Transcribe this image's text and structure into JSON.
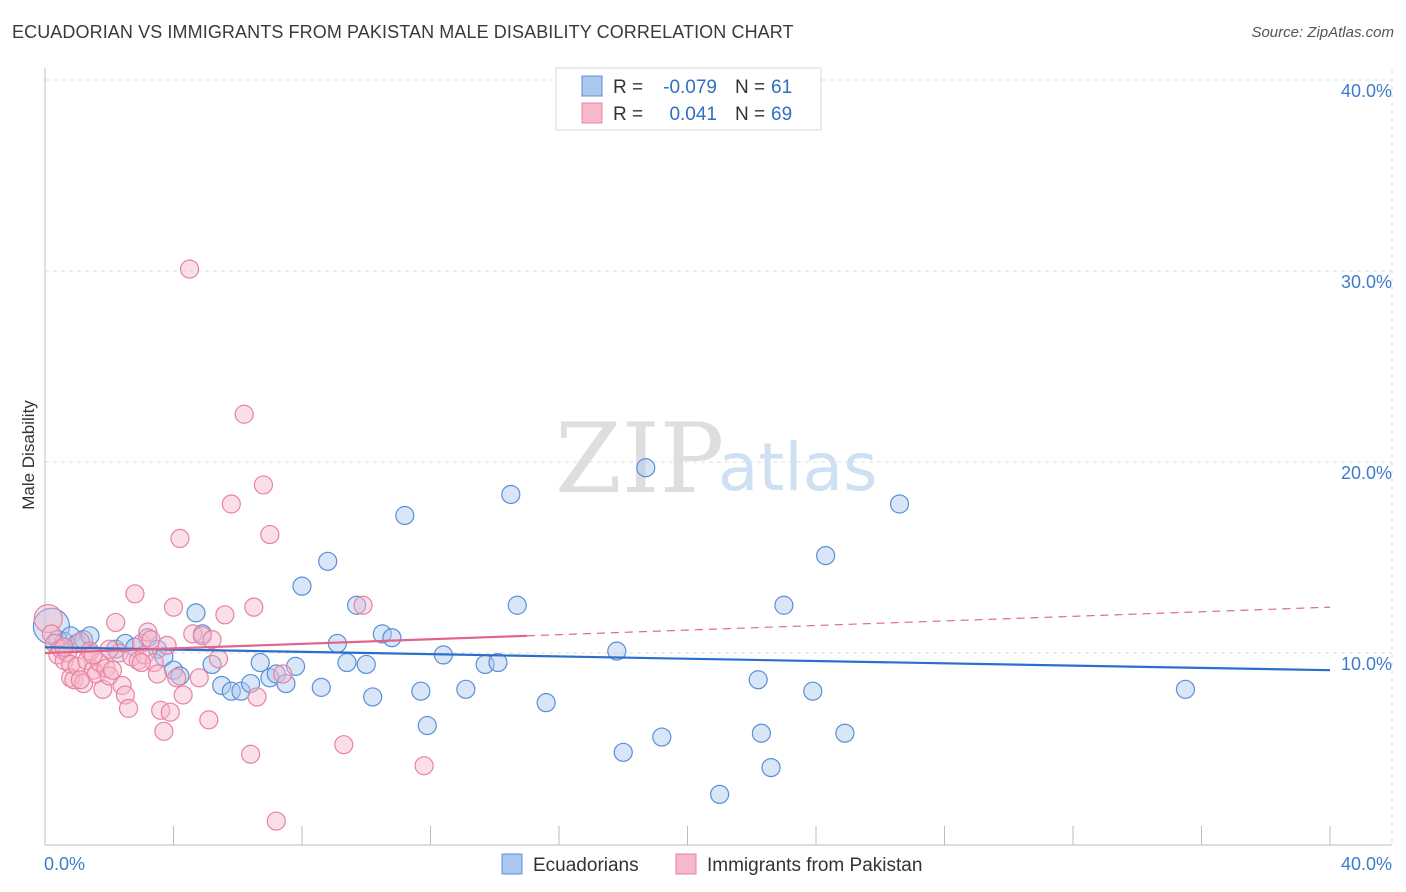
{
  "title": "ECUADORIAN VS IMMIGRANTS FROM PAKISTAN MALE DISABILITY CORRELATION CHART",
  "source": "Source: ZipAtlas.com",
  "watermark": {
    "part1": "ZIP",
    "part2": "atlas"
  },
  "chart_data": {
    "type": "scatter",
    "title": "ECUADORIAN VS IMMIGRANTS FROM PAKISTAN MALE DISABILITY CORRELATION CHART",
    "ylabel": "Male Disability",
    "xlabel": "",
    "xlim": [
      0,
      40
    ],
    "ylim": [
      0,
      40
    ],
    "x_tick_labels": {
      "min": "0.0%",
      "max": "40.0%"
    },
    "y_tick_labels": [
      {
        "value": 10,
        "label": "10.0%"
      },
      {
        "value": 20,
        "label": "20.0%"
      },
      {
        "value": 30,
        "label": "30.0%"
      },
      {
        "value": 40,
        "label": "40.0%"
      }
    ],
    "grid": true,
    "legend": {
      "placement": "top-center",
      "r_label": "R =",
      "n_label": "N =",
      "entries": [
        {
          "series": "Ecuadorians",
          "r": "-0.079",
          "n": "61"
        },
        {
          "series": "Immigrants from Pakistan",
          "r": "0.041",
          "n": "69"
        }
      ]
    },
    "colors": {
      "Ecuadorians": {
        "fill": "#a9c8ef",
        "stroke": "#5a8fd6",
        "line": "#2b6fcc"
      },
      "Immigrants from Pakistan": {
        "fill": "#f6b9cb",
        "stroke": "#e8839f",
        "line": "#e0648e"
      }
    },
    "series": [
      {
        "name": "Ecuadorians",
        "trend": {
          "x_start": 0,
          "y_start": 10.3,
          "x_end": 40,
          "y_end": 9.1,
          "dashed_from": null
        },
        "points": [
          [
            0.2,
            11.4
          ],
          [
            0.4,
            10.7
          ],
          [
            0.6,
            10.6
          ],
          [
            0.8,
            10.9
          ],
          [
            1.0,
            10.5
          ],
          [
            1.2,
            10.7
          ],
          [
            1.4,
            10.9
          ],
          [
            2.2,
            10.2
          ],
          [
            2.5,
            10.5
          ],
          [
            2.8,
            10.3
          ],
          [
            3.2,
            10.8
          ],
          [
            3.5,
            10.2
          ],
          [
            3.7,
            9.8
          ],
          [
            4.0,
            9.1
          ],
          [
            4.2,
            8.8
          ],
          [
            4.7,
            12.1
          ],
          [
            4.9,
            11.0
          ],
          [
            5.2,
            9.4
          ],
          [
            5.5,
            8.3
          ],
          [
            5.8,
            8.0
          ],
          [
            6.1,
            8.0
          ],
          [
            6.4,
            8.4
          ],
          [
            6.7,
            9.5
          ],
          [
            7.0,
            8.7
          ],
          [
            7.2,
            8.9
          ],
          [
            7.5,
            8.4
          ],
          [
            7.8,
            9.3
          ],
          [
            8.0,
            13.5
          ],
          [
            8.6,
            8.2
          ],
          [
            8.8,
            14.8
          ],
          [
            9.1,
            10.5
          ],
          [
            9.4,
            9.5
          ],
          [
            9.7,
            12.5
          ],
          [
            10.0,
            9.4
          ],
          [
            10.2,
            7.7
          ],
          [
            10.5,
            11.0
          ],
          [
            10.8,
            10.8
          ],
          [
            11.2,
            17.2
          ],
          [
            11.7,
            8.0
          ],
          [
            11.9,
            6.2
          ],
          [
            12.4,
            9.9
          ],
          [
            13.1,
            8.1
          ],
          [
            13.7,
            9.4
          ],
          [
            14.1,
            9.5
          ],
          [
            14.5,
            18.3
          ],
          [
            14.7,
            12.5
          ],
          [
            15.6,
            7.4
          ],
          [
            17.8,
            10.1
          ],
          [
            18.0,
            4.8
          ],
          [
            18.7,
            19.7
          ],
          [
            19.2,
            5.6
          ],
          [
            22.2,
            8.6
          ],
          [
            22.3,
            5.8
          ],
          [
            22.6,
            4.0
          ],
          [
            23.0,
            12.5
          ],
          [
            23.9,
            8.0
          ],
          [
            24.3,
            15.1
          ],
          [
            24.9,
            5.8
          ],
          [
            26.6,
            17.8
          ],
          [
            35.5,
            8.1
          ],
          [
            21.0,
            2.6
          ]
        ]
      },
      {
        "name": "Immigrants from Pakistan",
        "trend": {
          "x_start": 0,
          "y_start": 10.0,
          "x_end": 40,
          "y_end": 12.4,
          "dashed_from": 15
        },
        "points": [
          [
            0.1,
            11.8
          ],
          [
            0.2,
            11.0
          ],
          [
            0.3,
            10.5
          ],
          [
            0.4,
            9.9
          ],
          [
            0.5,
            10.2
          ],
          [
            0.6,
            9.6
          ],
          [
            0.7,
            10.0
          ],
          [
            0.8,
            9.4
          ],
          [
            0.8,
            8.7
          ],
          [
            0.9,
            8.6
          ],
          [
            1.0,
            9.3
          ],
          [
            1.1,
            10.6
          ],
          [
            1.2,
            8.4
          ],
          [
            1.3,
            9.6
          ],
          [
            1.4,
            10.1
          ],
          [
            1.5,
            9.1
          ],
          [
            1.6,
            8.9
          ],
          [
            1.7,
            9.5
          ],
          [
            1.8,
            8.1
          ],
          [
            1.9,
            9.2
          ],
          [
            2.0,
            8.8
          ],
          [
            2.1,
            9.1
          ],
          [
            2.2,
            11.6
          ],
          [
            2.3,
            10.0
          ],
          [
            2.4,
            8.3
          ],
          [
            2.5,
            7.8
          ],
          [
            2.6,
            7.1
          ],
          [
            2.7,
            9.8
          ],
          [
            2.8,
            13.1
          ],
          [
            2.9,
            9.6
          ],
          [
            3.0,
            10.5
          ],
          [
            3.1,
            9.9
          ],
          [
            3.2,
            11.1
          ],
          [
            3.3,
            10.7
          ],
          [
            3.4,
            9.5
          ],
          [
            3.5,
            8.9
          ],
          [
            3.6,
            7.0
          ],
          [
            3.7,
            5.9
          ],
          [
            3.8,
            10.4
          ],
          [
            3.9,
            6.9
          ],
          [
            4.0,
            12.4
          ],
          [
            4.1,
            8.7
          ],
          [
            4.2,
            16.0
          ],
          [
            4.3,
            7.8
          ],
          [
            4.5,
            30.1
          ],
          [
            4.6,
            11.0
          ],
          [
            4.8,
            8.7
          ],
          [
            4.9,
            10.9
          ],
          [
            5.1,
            6.5
          ],
          [
            5.2,
            10.7
          ],
          [
            5.4,
            9.7
          ],
          [
            5.6,
            12.0
          ],
          [
            5.8,
            17.8
          ],
          [
            6.2,
            22.5
          ],
          [
            6.4,
            4.7
          ],
          [
            6.5,
            12.4
          ],
          [
            6.6,
            7.7
          ],
          [
            6.8,
            18.8
          ],
          [
            7.0,
            16.2
          ],
          [
            7.2,
            1.2
          ],
          [
            7.4,
            8.9
          ],
          [
            9.3,
            5.2
          ],
          [
            9.9,
            12.5
          ],
          [
            11.8,
            4.1
          ],
          [
            1.1,
            8.6
          ],
          [
            2.0,
            10.2
          ],
          [
            3.0,
            9.5
          ],
          [
            0.6,
            10.3
          ],
          [
            1.5,
            9.9
          ]
        ]
      }
    ]
  },
  "bottom_legend": [
    {
      "series": "Ecuadorians",
      "label": "Ecuadorians"
    },
    {
      "series": "Immigrants from Pakistan",
      "label": "Immigrants from Pakistan"
    }
  ]
}
